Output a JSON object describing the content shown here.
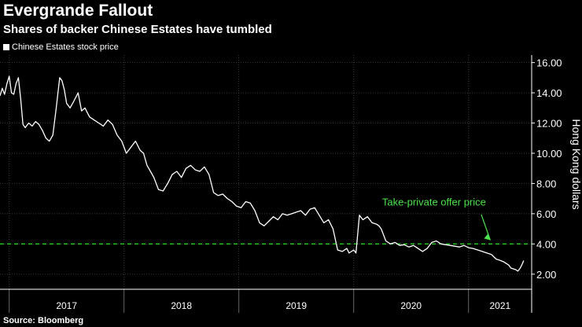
{
  "chart_data": {
    "type": "line",
    "title": "Evergrande Fallout",
    "subtitle": "Shares of backer Chinese Estates have tumbled",
    "legend": [
      "Chinese Estates stock price"
    ],
    "ylabel": "Hong Kong dollars",
    "ylim": [
      1.0,
      16.5
    ],
    "yticks": [
      "2.00",
      "4.00",
      "6.00",
      "8.00",
      "10.00",
      "12.00",
      "14.00",
      "16.00"
    ],
    "ytick_values": [
      2,
      4,
      6,
      8,
      10,
      12,
      14,
      16
    ],
    "xlim": [
      2016.92,
      2021.55
    ],
    "xticks": [
      "2017",
      "2018",
      "2019",
      "2020",
      "2021"
    ],
    "year_boundaries": [
      2017,
      2018,
      2019,
      2020,
      2021
    ],
    "grid": true,
    "series": [
      {
        "name": "Chinese Estates stock price",
        "color": "#ffffff",
        "x": [
          2016.92,
          2016.94,
          2016.96,
          2016.98,
          2017.0,
          2017.02,
          2017.04,
          2017.06,
          2017.08,
          2017.1,
          2017.12,
          2017.14,
          2017.17,
          2017.2,
          2017.23,
          2017.26,
          2017.29,
          2017.32,
          2017.35,
          2017.38,
          2017.41,
          2017.44,
          2017.46,
          2017.48,
          2017.5,
          2017.53,
          2017.56,
          2017.6,
          2017.63,
          2017.66,
          2017.7,
          2017.74,
          2017.78,
          2017.82,
          2017.86,
          2017.9,
          2017.94,
          2017.98,
          2018.02,
          2018.06,
          2018.1,
          2018.14,
          2018.17,
          2018.2,
          2018.23,
          2018.26,
          2018.3,
          2018.34,
          2018.38,
          2018.42,
          2018.46,
          2018.5,
          2018.54,
          2018.58,
          2018.62,
          2018.66,
          2018.7,
          2018.74,
          2018.78,
          2018.82,
          2018.86,
          2018.9,
          2018.94,
          2018.98,
          2019.02,
          2019.06,
          2019.1,
          2019.14,
          2019.18,
          2019.22,
          2019.26,
          2019.3,
          2019.34,
          2019.38,
          2019.42,
          2019.46,
          2019.5,
          2019.54,
          2019.58,
          2019.62,
          2019.66,
          2019.7,
          2019.74,
          2019.76,
          2019.78,
          2019.82,
          2019.86,
          2019.9,
          2019.94,
          2019.96,
          2019.98,
          2020.0,
          2020.02,
          2020.05,
          2020.08,
          2020.12,
          2020.16,
          2020.2,
          2020.22,
          2020.24,
          2020.28,
          2020.32,
          2020.36,
          2020.4,
          2020.44,
          2020.48,
          2020.52,
          2020.56,
          2020.6,
          2020.64,
          2020.68,
          2020.72,
          2020.76,
          2020.8,
          2020.84,
          2020.88,
          2020.92,
          2020.96,
          2021.0,
          2021.04,
          2021.08,
          2021.12,
          2021.16,
          2021.2,
          2021.24,
          2021.28,
          2021.31,
          2021.33,
          2021.35,
          2021.37,
          2021.39,
          2021.41,
          2021.43,
          2021.45,
          2021.47,
          2021.48
        ],
        "values": [
          13.8,
          14.3,
          13.9,
          14.6,
          15.1,
          14.0,
          13.9,
          14.6,
          15.0,
          13.6,
          11.9,
          11.7,
          12.0,
          11.8,
          12.1,
          11.9,
          11.5,
          11.0,
          10.8,
          11.2,
          13.0,
          15.0,
          14.8,
          14.2,
          13.3,
          13.0,
          13.4,
          14.0,
          12.8,
          13.0,
          12.4,
          12.2,
          12.0,
          11.8,
          12.2,
          11.9,
          11.2,
          10.8,
          10.0,
          10.4,
          10.8,
          10.2,
          10.0,
          9.2,
          8.8,
          8.4,
          7.6,
          7.5,
          8.0,
          8.6,
          8.8,
          8.4,
          9.0,
          9.2,
          8.9,
          8.8,
          9.1,
          8.6,
          7.4,
          7.2,
          7.3,
          7.0,
          6.8,
          6.5,
          6.4,
          6.8,
          6.7,
          6.2,
          5.4,
          5.2,
          5.5,
          5.8,
          5.6,
          6.0,
          5.9,
          6.0,
          6.1,
          6.2,
          5.9,
          6.3,
          6.4,
          5.9,
          5.4,
          5.5,
          5.6,
          5.0,
          3.6,
          3.5,
          3.7,
          3.4,
          3.5,
          3.6,
          3.4,
          5.9,
          5.6,
          5.8,
          5.4,
          5.3,
          5.2,
          5.0,
          4.2,
          4.0,
          4.1,
          3.9,
          3.95,
          3.8,
          3.9,
          3.7,
          3.5,
          3.7,
          4.1,
          4.2,
          4.0,
          3.95,
          3.9,
          3.85,
          3.8,
          3.9,
          3.75,
          3.7,
          3.6,
          3.5,
          3.4,
          3.3,
          3.0,
          2.9,
          2.8,
          2.7,
          2.6,
          2.4,
          2.35,
          2.3,
          2.2,
          2.4,
          2.7,
          2.9
        ]
      }
    ],
    "reference_line": {
      "label": "Take-private offer price",
      "value": 4.0,
      "color": "#1fd01f"
    },
    "annotation": {
      "text": "Take-private offer price",
      "color": "#4de34d"
    },
    "source": "Source: Bloomberg"
  }
}
